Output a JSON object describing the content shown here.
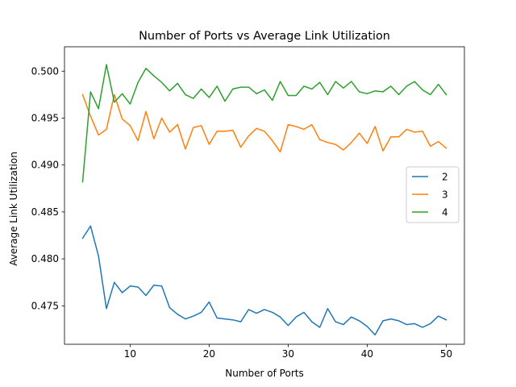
{
  "chart_data": {
    "type": "line",
    "title": "Number of Ports vs Average Link Utilization",
    "xlabel": "Number of Ports",
    "ylabel": "Average Link Utilization",
    "xlim": [
      1.7,
      52.3
    ],
    "ylim": [
      0.4709,
      0.5026
    ],
    "xticks": [
      10,
      20,
      30,
      40,
      50
    ],
    "yticks": [
      0.475,
      0.48,
      0.485,
      0.49,
      0.495,
      0.5
    ],
    "ytick_labels": [
      "0.475",
      "0.480",
      "0.485",
      "0.490",
      "0.495",
      "0.500"
    ],
    "grid": false,
    "legend_position": "center-right",
    "x": [
      4,
      5,
      6,
      7,
      8,
      9,
      10,
      11,
      12,
      13,
      14,
      15,
      16,
      17,
      18,
      19,
      20,
      21,
      22,
      23,
      24,
      25,
      26,
      27,
      28,
      29,
      30,
      31,
      32,
      33,
      34,
      35,
      36,
      37,
      38,
      39,
      40,
      41,
      42,
      43,
      44,
      45,
      46,
      47,
      48,
      49,
      50
    ],
    "series": [
      {
        "name": "2",
        "color": "#1f77b4",
        "values": [
          0.4822,
          0.4835,
          0.4803,
          0.4747,
          0.4775,
          0.4764,
          0.4771,
          0.477,
          0.4761,
          0.4772,
          0.4771,
          0.4748,
          0.4741,
          0.4736,
          0.4739,
          0.4743,
          0.4754,
          0.4737,
          0.4736,
          0.4735,
          0.4733,
          0.4746,
          0.4742,
          0.4746,
          0.4743,
          0.4738,
          0.4729,
          0.4738,
          0.4743,
          0.4733,
          0.4727,
          0.4747,
          0.4733,
          0.473,
          0.4738,
          0.4734,
          0.4728,
          0.4719,
          0.4734,
          0.4736,
          0.4734,
          0.473,
          0.4731,
          0.4727,
          0.4731,
          0.4739,
          0.4735
        ]
      },
      {
        "name": "3",
        "color": "#ff7f0e",
        "values": [
          0.4975,
          0.4952,
          0.4932,
          0.4938,
          0.4975,
          0.4949,
          0.4942,
          0.4926,
          0.4957,
          0.4928,
          0.495,
          0.4935,
          0.4943,
          0.4917,
          0.494,
          0.4942,
          0.4922,
          0.4936,
          0.4936,
          0.4937,
          0.4919,
          0.4931,
          0.4939,
          0.4936,
          0.4926,
          0.4914,
          0.4943,
          0.4941,
          0.4938,
          0.4943,
          0.4927,
          0.4924,
          0.4922,
          0.4916,
          0.4924,
          0.4934,
          0.4923,
          0.4941,
          0.4915,
          0.493,
          0.493,
          0.4938,
          0.4935,
          0.4936,
          0.492,
          0.4925,
          0.4918
        ]
      },
      {
        "name": "4",
        "color": "#2ca02c",
        "values": [
          0.4882,
          0.4978,
          0.496,
          0.5007,
          0.4967,
          0.4976,
          0.4965,
          0.4988,
          0.5003,
          0.4995,
          0.4988,
          0.4979,
          0.4987,
          0.4975,
          0.4971,
          0.4981,
          0.4972,
          0.4984,
          0.4968,
          0.4981,
          0.4983,
          0.4983,
          0.4976,
          0.498,
          0.4969,
          0.4989,
          0.4974,
          0.4974,
          0.4984,
          0.4981,
          0.4988,
          0.4975,
          0.4989,
          0.4982,
          0.4989,
          0.4978,
          0.4976,
          0.4979,
          0.4978,
          0.4984,
          0.4975,
          0.4984,
          0.4989,
          0.498,
          0.4975,
          0.4986,
          0.4975
        ]
      }
    ]
  }
}
